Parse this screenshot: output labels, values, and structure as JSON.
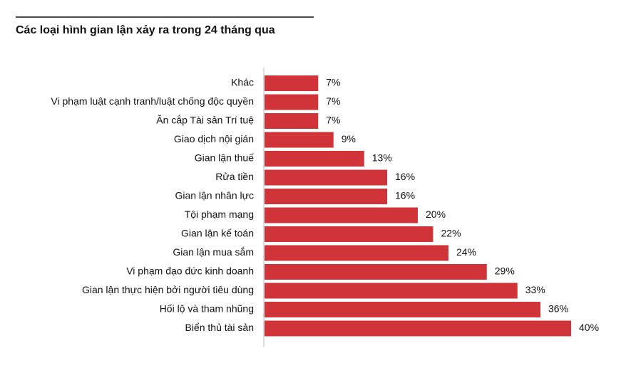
{
  "chart_data": {
    "type": "barh",
    "title": "Các loại hình gian lận xảy ra trong 24 tháng qua",
    "categories": [
      "Khác",
      "Vi phạm luật cạnh tranh/luật chống độc quyền",
      "Ăn cắp Tài sản Trí tuệ",
      "Giao dịch nội gián",
      "Gian lận thuế",
      "Rửa tiền",
      "Gian lận nhân lực",
      "Tội phạm mạng",
      "Gian lận kế toán",
      "Gian lận mua sắm",
      "Vi phạm đạo đức kinh doanh",
      "Gian lận thực hiện bởi người tiêu dùng",
      "Hối lộ và tham nhũng",
      "Biển thủ tài sản"
    ],
    "values": [
      7,
      7,
      7,
      9,
      13,
      16,
      16,
      20,
      22,
      24,
      29,
      33,
      36,
      40
    ],
    "value_labels": [
      "7%",
      "7%",
      "7%",
      "9%",
      "13%",
      "16%",
      "16%",
      "20%",
      "22%",
      "24%",
      "29%",
      "33%",
      "36%",
      "40%"
    ],
    "color": "#d13438"
  }
}
